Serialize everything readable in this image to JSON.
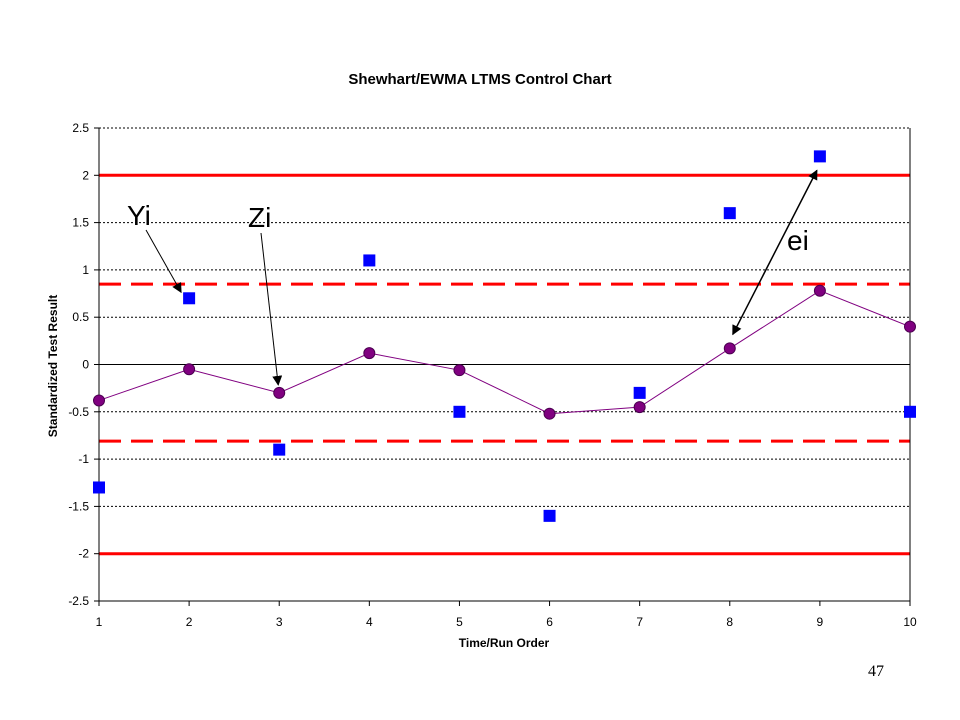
{
  "page_number": "47",
  "chart_data": {
    "type": "scatter",
    "title": "Shewhart/EWMA LTMS Control Chart",
    "xlabel": "Time/Run Order",
    "ylabel": "Standardized Test Result",
    "x": [
      1,
      2,
      3,
      4,
      5,
      6,
      7,
      8,
      9,
      10
    ],
    "xlim": [
      1,
      10
    ],
    "ylim": [
      -2.5,
      2.5
    ],
    "x_ticks": [
      "1",
      "2",
      "3",
      "4",
      "5",
      "6",
      "7",
      "8",
      "9",
      "10"
    ],
    "y_ticks": [
      "2.5",
      "2",
      "1.5",
      "1",
      "0.5",
      "0",
      "-0.5",
      "-1",
      "-1.5",
      "-2",
      "-2.5"
    ],
    "y_tick_values": [
      2.5,
      2,
      1.5,
      1,
      0.5,
      0,
      -0.5,
      -1,
      -1.5,
      -2,
      -2.5
    ],
    "grid": "horizontal dotted",
    "series": [
      {
        "role": "individual results",
        "marker": "square",
        "color": "#0000ff",
        "values": [
          -1.3,
          0.7,
          -0.9,
          1.1,
          -0.5,
          -1.6,
          -0.3,
          1.6,
          2.2,
          -0.5
        ]
      },
      {
        "role": "ewma",
        "marker": "circle",
        "color": "#800080",
        "values": [
          -0.38,
          -0.05,
          -0.3,
          0.12,
          -0.06,
          -0.52,
          -0.45,
          0.17,
          0.78,
          0.4
        ]
      }
    ],
    "reference_lines": [
      {
        "y": 2.0,
        "style": "solid",
        "color": "#ff0000"
      },
      {
        "y": -2.0,
        "style": "solid",
        "color": "#ff0000"
      },
      {
        "y": 0.85,
        "style": "dashed",
        "color": "#ff0000"
      },
      {
        "y": -0.81,
        "style": "dashed",
        "color": "#ff0000"
      }
    ],
    "annotations": [
      {
        "text": "Yi",
        "points_to": {
          "x": 2,
          "y": 0.7
        }
      },
      {
        "text": "Zi",
        "points_to": {
          "x": 3,
          "y": -0.3
        }
      },
      {
        "text": "ei",
        "double_arrow_between": [
          {
            "x": 8,
            "y": 0.17
          },
          {
            "x": 9,
            "y": 2.2
          }
        ]
      }
    ]
  }
}
